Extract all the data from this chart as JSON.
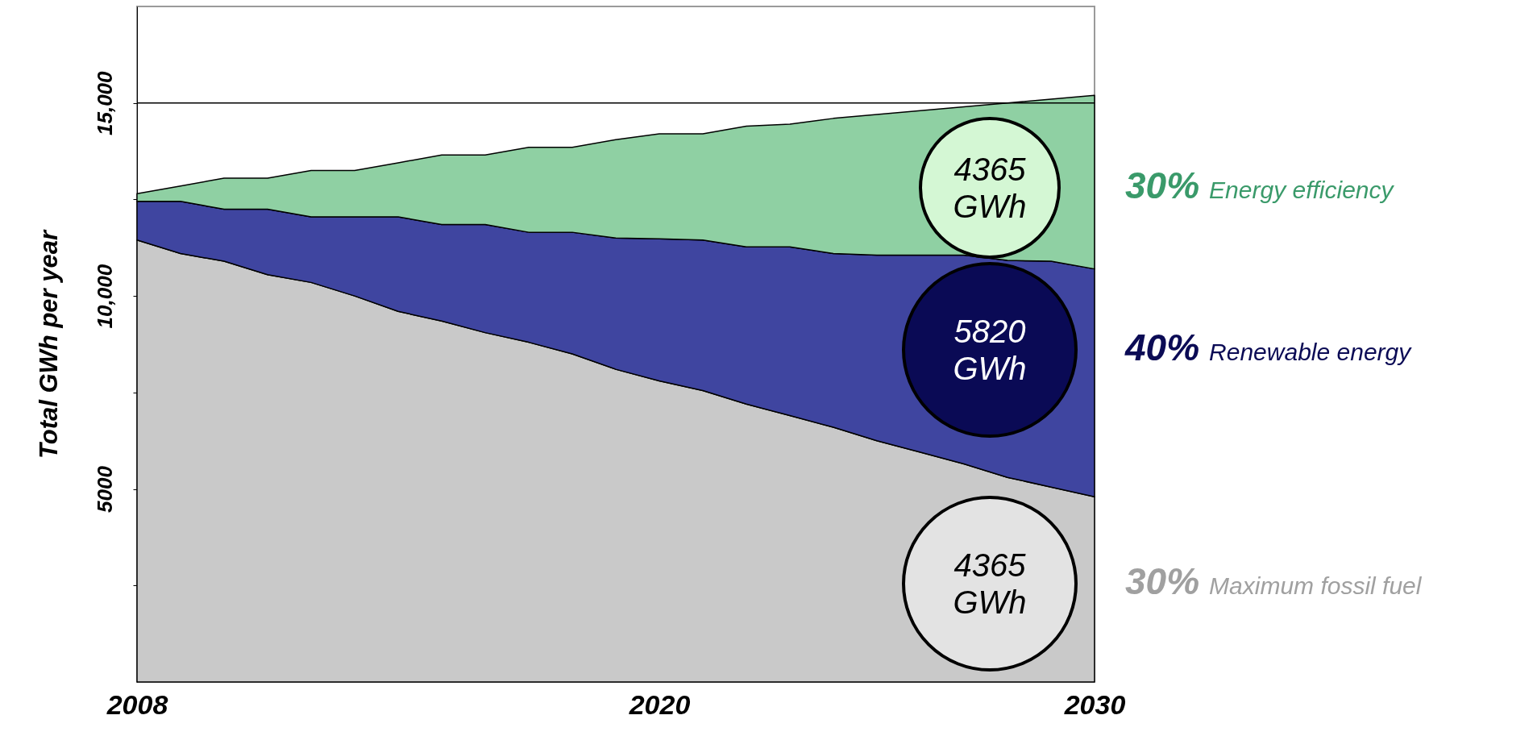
{
  "chart_data": {
    "type": "area",
    "stacked": true,
    "ylabel": "Total GWh per year",
    "x": [
      2008,
      2009,
      2010,
      2011,
      2012,
      2013,
      2014,
      2015,
      2016,
      2017,
      2018,
      2019,
      2020,
      2021,
      2022,
      2023,
      2024,
      2025,
      2026,
      2027,
      2028,
      2029,
      2030
    ],
    "series": [
      {
        "name": "Maximum fossil fuel",
        "color": "#c9c9c9",
        "values": [
          11450,
          11100,
          10900,
          10550,
          10350,
          10000,
          9600,
          9350,
          9050,
          8800,
          8500,
          8100,
          7800,
          7550,
          7200,
          6900,
          6600,
          6250,
          5950,
          5650,
          5300,
          5050,
          4800
        ]
      },
      {
        "name": "Renewable energy",
        "color": "#3f45a0",
        "values": [
          1000,
          1350,
          1350,
          1700,
          1700,
          2050,
          2450,
          2500,
          2800,
          2850,
          3150,
          3400,
          3680,
          3900,
          4070,
          4370,
          4500,
          4810,
          5110,
          5410,
          5620,
          5850,
          5900
        ]
      },
      {
        "name": "Energy efficiency",
        "color": "#8fd0a3",
        "values": [
          200,
          400,
          800,
          800,
          1200,
          1200,
          1400,
          1800,
          1800,
          2200,
          2200,
          2550,
          2720,
          2750,
          3130,
          3180,
          3500,
          3640,
          3740,
          3840,
          4080,
          4200,
          4500
        ]
      }
    ],
    "xlim": [
      2008,
      2030
    ],
    "xticks": [
      2008,
      2020,
      2030
    ],
    "ylim": [
      0,
      17500
    ],
    "yticks": [
      {
        "value": 2500,
        "label": null
      },
      5000,
      {
        "value": 7500,
        "label": null
      },
      {
        "value": 10000,
        "label": "10,000"
      },
      {
        "value": 12500,
        "label": null
      },
      {
        "value": 15000,
        "label": "15,000"
      }
    ],
    "ref_lines": [
      {
        "axis": "y",
        "value": 15000,
        "color": "#000000"
      }
    ],
    "annotations": [
      "30%",
      "40%",
      "30%",
      "4365 GWh",
      "5820 GWh",
      "4365 GWh"
    ]
  }
}
